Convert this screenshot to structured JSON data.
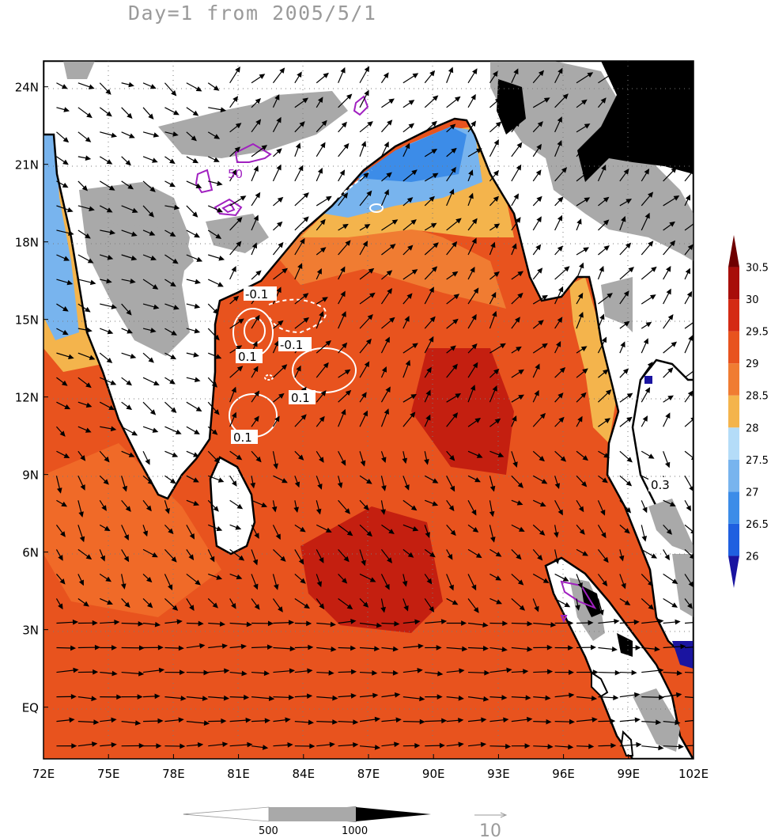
{
  "title": "Day=1 from 2005/5/1",
  "map": {
    "lon_range": [
      72,
      102
    ],
    "lat_range": [
      -2,
      25
    ],
    "lon_ticks": [
      "72E",
      "75E",
      "78E",
      "81E",
      "84E",
      "87E",
      "90E",
      "93E",
      "96E",
      "99E",
      "102E"
    ],
    "lat_ticks": [
      "EQ",
      "3N",
      "6N",
      "9N",
      "12N",
      "15N",
      "18N",
      "21N",
      "24N"
    ],
    "grid": "dotted"
  },
  "sst_colorbar": {
    "labels": [
      "26",
      "26.5",
      "27",
      "27.5",
      "28",
      "28.5",
      "29",
      "29.5",
      "30",
      "30.5"
    ],
    "colors": [
      "#1a14a0",
      "#1f5fe0",
      "#3c8ce8",
      "#78b4ee",
      "#b4dcf8",
      "#f4b44c",
      "#f07c32",
      "#e8531e",
      "#d42a14",
      "#a80e0a",
      "#6e0000"
    ]
  },
  "topo_colorbar": {
    "labels": [
      "500",
      "1000"
    ],
    "colors": [
      "#ffffff",
      "#a9a9a9",
      "#000000"
    ]
  },
  "vector_reference": {
    "label": "10"
  },
  "contour_labels": [
    {
      "text": "50",
      "color": "#a020c0"
    },
    {
      "text": "-0.1",
      "color": "#000000"
    },
    {
      "text": "-0.1",
      "color": "#000000"
    },
    {
      "text": "0.1",
      "color": "#000000"
    },
    {
      "text": "0.1",
      "color": "#000000"
    },
    {
      "text": "0.1",
      "color": "#000000"
    },
    {
      "text": "0.3",
      "color": "#000000"
    }
  ]
}
